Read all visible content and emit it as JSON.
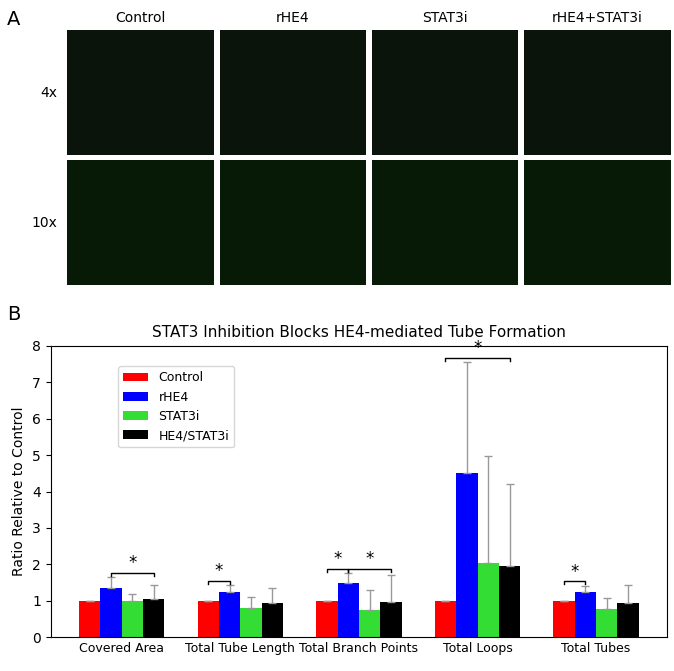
{
  "panel_a": {
    "label": "A",
    "columns": [
      "Control",
      "rHE4",
      "STAT3i",
      "rHE4+STAT3i"
    ],
    "rows": [
      "4x",
      "10x"
    ]
  },
  "panel_b_label": "B",
  "chart_data": {
    "type": "bar",
    "title": "STAT3 Inhibition Blocks HE4-mediated Tube Formation",
    "y_label": "Ratio Relative to Control",
    "categories": [
      "Covered Area",
      "Total Tube Length",
      "Total Branch Points",
      "Total Loops",
      "Total Tubes"
    ],
    "series": [
      {
        "name": "Control",
        "color": "#ff0000",
        "values": [
          1,
          1,
          1,
          1,
          1
        ],
        "errors": [
          0,
          0,
          0,
          0,
          0
        ]
      },
      {
        "name": "rHE4",
        "color": "#0000ff",
        "values": [
          1.35,
          1.25,
          1.48,
          4.5,
          1.25
        ],
        "errors": [
          0.3,
          0.18,
          0.28,
          3.05,
          0.17
        ]
      },
      {
        "name": "STAT3i",
        "color": "#33dd33",
        "values": [
          1.0,
          0.82,
          0.75,
          2.05,
          0.77
        ],
        "errors": [
          0.2,
          0.28,
          0.55,
          2.92,
          0.3
        ]
      },
      {
        "name": "HE4/STAT3i",
        "color": "#000000",
        "values": [
          1.05,
          0.95,
          0.97,
          1.95,
          0.95
        ],
        "errors": [
          0.38,
          0.4,
          0.75,
          2.25,
          0.48
        ]
      }
    ],
    "significance": [
      {
        "category": "Covered Area",
        "between": [
          "rHE4",
          "HE4/STAT3i"
        ],
        "label": "*"
      },
      {
        "category": "Total Tube Length",
        "between": [
          "Control",
          "rHE4"
        ],
        "label": "*"
      },
      {
        "category": "Total Branch Points",
        "between": [
          "Control",
          "rHE4"
        ],
        "label": "*"
      },
      {
        "category": "Total Branch Points",
        "between": [
          "rHE4",
          "HE4/STAT3i"
        ],
        "label": "*"
      },
      {
        "category": "Total Loops",
        "between": [
          "Control",
          "HE4/STAT3i"
        ],
        "label": "*"
      },
      {
        "category": "Total Tubes",
        "between": [
          "Control",
          "rHE4"
        ],
        "label": "*"
      }
    ],
    "ylim": [
      0,
      8
    ],
    "yticks": [
      0,
      1,
      2,
      3,
      4,
      5,
      6,
      7,
      8
    ],
    "legend": "upper left",
    "grid": false
  }
}
